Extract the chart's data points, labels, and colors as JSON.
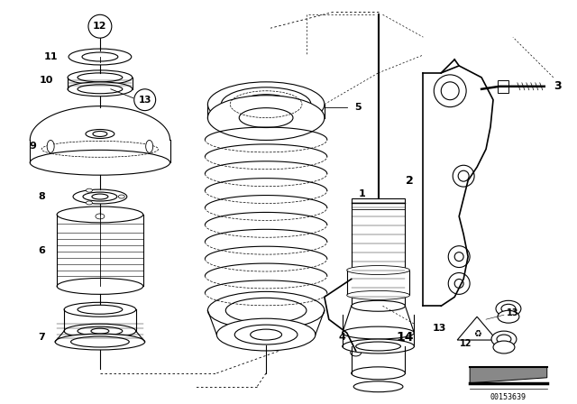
{
  "bg_color": "#ffffff",
  "line_color": "#000000",
  "diagram_code": "00153639"
}
